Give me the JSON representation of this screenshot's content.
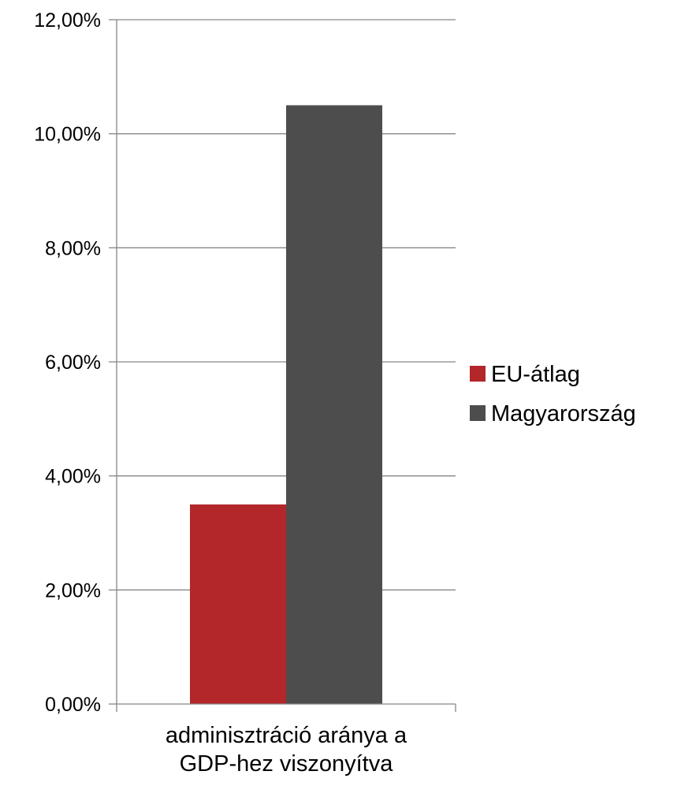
{
  "chart_data": {
    "type": "bar",
    "categories": [
      "adminisztráció aránya a GDP-hez viszonyítva"
    ],
    "category_lines": [
      "adminisztráció aránya a",
      "GDP-hez viszonyítva"
    ],
    "series": [
      {
        "name": "EU-átlag",
        "values": [
          3.5
        ],
        "color": "#B3262A"
      },
      {
        "name": "Magyarország",
        "values": [
          10.5
        ],
        "color": "#4D4D4D"
      }
    ],
    "ylim": [
      0,
      12
    ],
    "yticks": [
      0,
      2,
      4,
      6,
      8,
      10,
      12
    ],
    "ytick_labels": [
      "0,00%",
      "2,00%",
      "4,00%",
      "6,00%",
      "8,00%",
      "10,00%",
      "12,00%"
    ],
    "grid": true,
    "legend_position": "right",
    "gridline_color": "#868686",
    "axis_color": "#868686"
  }
}
